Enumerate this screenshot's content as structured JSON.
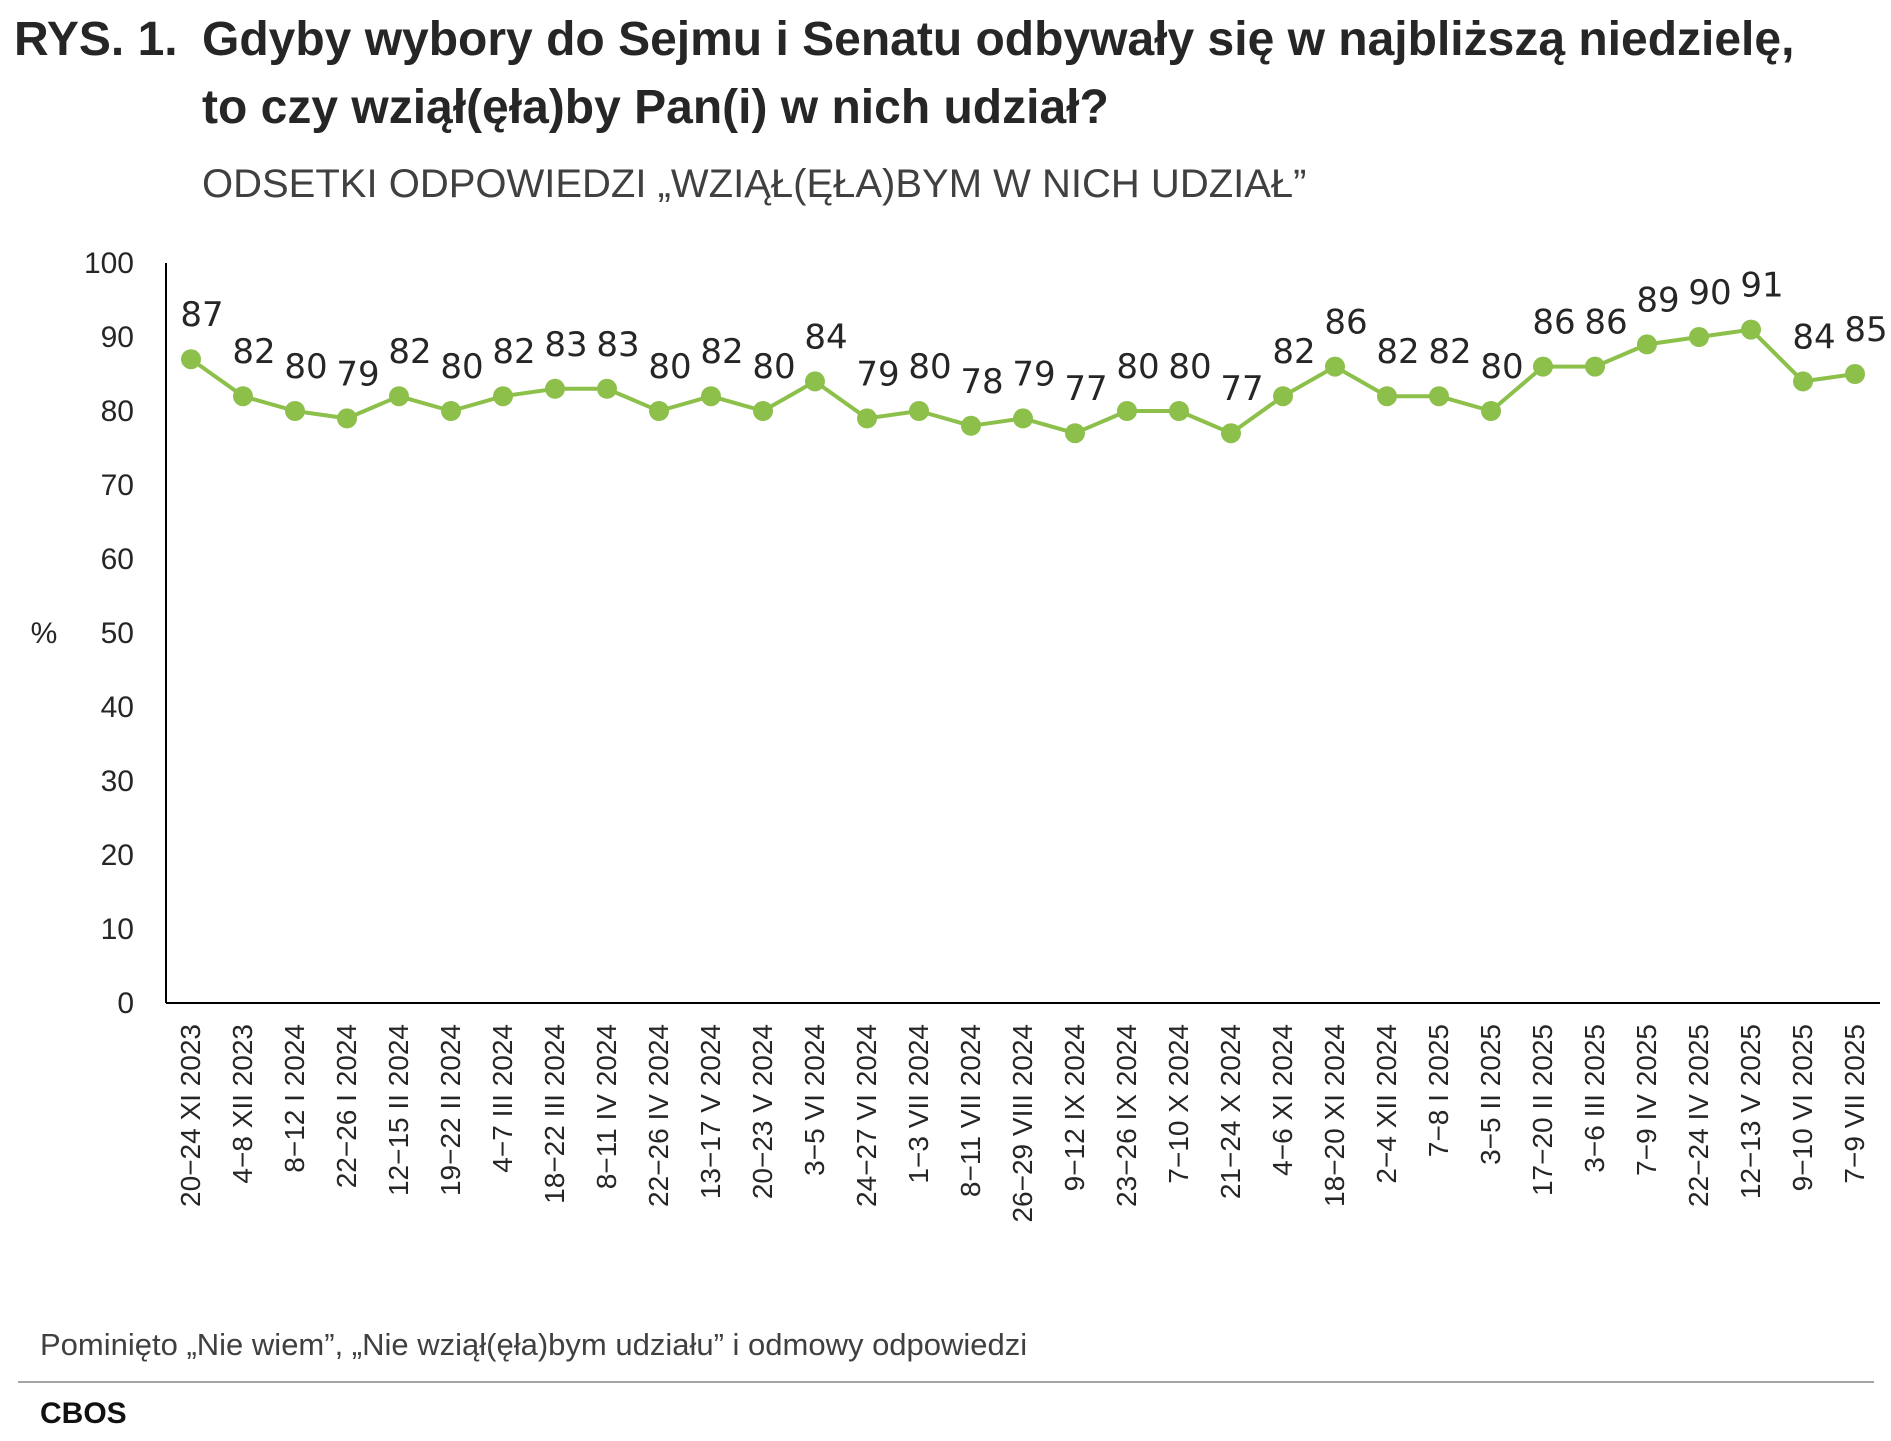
{
  "header": {
    "prefix": "RYS. 1.",
    "title_line1": "Gdyby wybory do Sejmu i Senatu odbywały się w najbliższą niedzielę,",
    "title_line2": "to czy wziął(ęła)by Pan(i) w nich udział?",
    "subtitle": "ODSETKI ODPOWIEDZI „WZIĄŁ(ĘŁA)BYM W NICH UDZIAŁ”"
  },
  "footer": {
    "note": "Pominięto „Nie wiem”, „Nie wziął(ęła)bym udziału” i odmowy odpowiedzi",
    "source": "CBOS"
  },
  "colors": {
    "series": "#8cc04b",
    "axis": "#000000"
  },
  "chart_data": {
    "type": "line",
    "ylabel": "%",
    "ylim": [
      0,
      100
    ],
    "yticks": [
      0,
      10,
      20,
      30,
      40,
      50,
      60,
      70,
      80,
      90,
      100
    ],
    "grid": false,
    "legend": "none",
    "data_labels": true,
    "categories": [
      "20−24 XI 2023",
      "4−8 XII 2023",
      "8−12 I 2024",
      "22−26 I 2024",
      "12−15 II 2024",
      "19−22 II 2024",
      "4−7 III 2024",
      "18−22 III 2024",
      "8−11 IV 2024",
      "22−26 IV 2024",
      "13−17 V 2024",
      "20−23 V 2024",
      "3−5 VI 2024",
      "24−27 VI 2024",
      "1−3 VII 2024",
      "8−11 VII 2024",
      "26−29 VIII 2024",
      "9−12 IX 2024",
      "23−26 IX 2024",
      "7−10 X 2024",
      "21−24 X 2024",
      "4−6 XI 2024",
      "18−20 XI 2024",
      "2−4 XII 2024",
      "7−8 I 2025",
      "3−5 II 2025",
      "17−20 II 2025",
      "3−6 III 2025",
      "7−9 IV 2025",
      "22−24 IV 2025",
      "12−13 V 2025",
      "9−10 VI 2025",
      "7−9 VII 2025"
    ],
    "values": [
      87,
      82,
      80,
      79,
      82,
      80,
      82,
      83,
      83,
      80,
      82,
      80,
      84,
      79,
      80,
      78,
      79,
      77,
      80,
      80,
      77,
      82,
      86,
      82,
      82,
      80,
      86,
      86,
      89,
      90,
      91,
      84,
      85
    ]
  }
}
